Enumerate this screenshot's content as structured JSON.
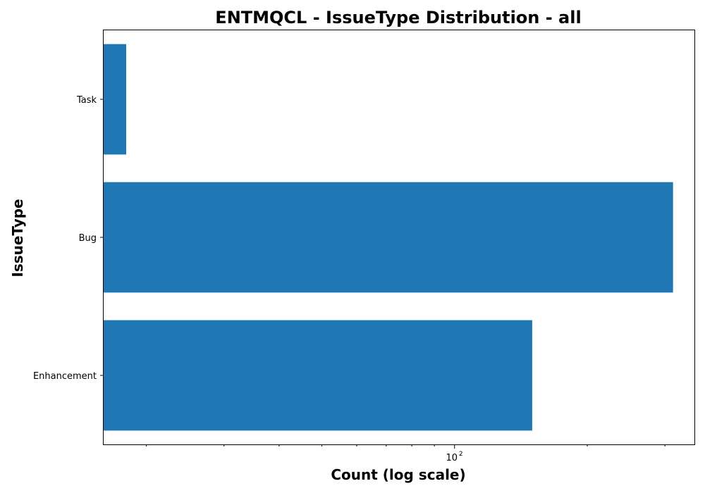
{
  "chart_data": {
    "type": "bar",
    "orientation": "horizontal",
    "title": "ENTMQCL - IssueType Distribution - all",
    "xlabel": "Count (log scale)",
    "ylabel": "IssueType",
    "x_scale": "log",
    "xlim": [
      16,
      350
    ],
    "categories": [
      "Enhancement",
      "Bug",
      "Task"
    ],
    "values": [
      150,
      313,
      18
    ],
    "bar_color": "#1f77b4",
    "x_major_ticks": [
      {
        "value": 100,
        "base": "10",
        "exponent": "2"
      }
    ],
    "x_minor_ticks": [
      20,
      30,
      40,
      50,
      60,
      70,
      80,
      90,
      200,
      300
    ],
    "grid": false,
    "legend": false
  }
}
